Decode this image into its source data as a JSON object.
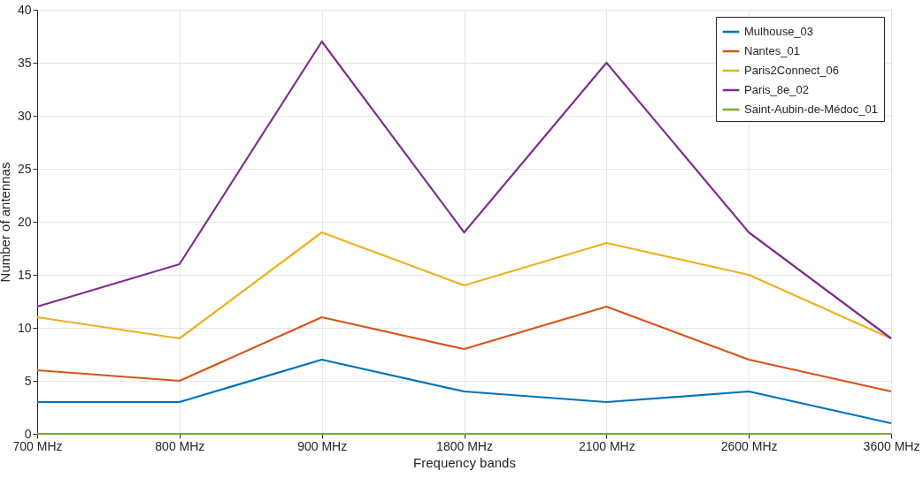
{
  "chart_data": {
    "type": "line",
    "xlabel": "Frequency bands",
    "ylabel": "Number of antennas",
    "categories": [
      "700 MHz",
      "800 MHz",
      "900 MHz",
      "1800 MHz",
      "2100 MHz",
      "2600 MHz",
      "3600 MHz"
    ],
    "series": [
      {
        "name": "Mulhouse_03",
        "color": "#0072bd",
        "values": [
          3,
          3,
          7,
          4,
          3,
          4,
          1
        ]
      },
      {
        "name": "Nantes_01",
        "color": "#d95319",
        "values": [
          6,
          5,
          11,
          8,
          12,
          7,
          4
        ]
      },
      {
        "name": "Paris2Connect_06",
        "color": "#edb120",
        "values": [
          11,
          9,
          19,
          14,
          18,
          15,
          9
        ]
      },
      {
        "name": "Paris_8e_02",
        "color": "#7e2f8e",
        "values": [
          12,
          16,
          37,
          19,
          35,
          19,
          9
        ]
      },
      {
        "name": "Saint-Aubin-de-Médoc_01",
        "color": "#77ac30",
        "values": [
          0,
          0,
          0,
          0,
          0,
          0,
          0
        ]
      }
    ],
    "ylim": [
      0,
      40
    ],
    "yticks": [
      0,
      5,
      10,
      15,
      20,
      25,
      30,
      35,
      40
    ],
    "grid": true,
    "legend": "top right",
    "marker": "none",
    "line_style": "solid"
  }
}
